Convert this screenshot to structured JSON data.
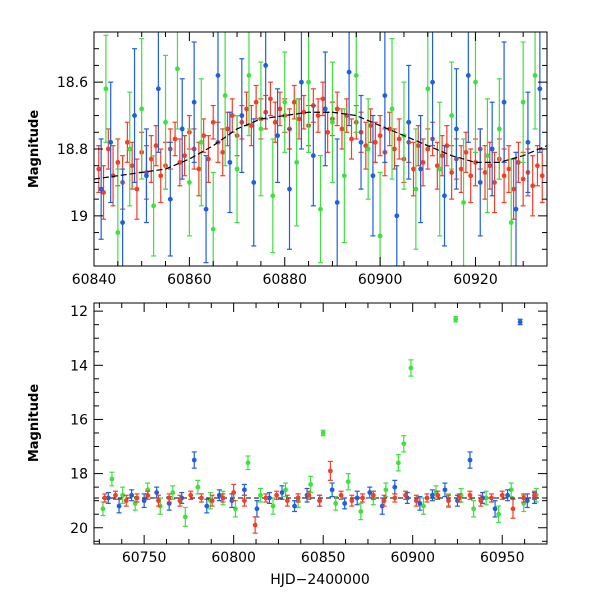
{
  "chart_data": [
    {
      "type": "scatter",
      "panel": "top",
      "ylabel": "Magnitude",
      "xlabel": "",
      "xlim": [
        60840,
        60935
      ],
      "ylim": [
        19.15,
        18.45
      ],
      "y_inverted": true,
      "x_ticks": [
        "60840",
        "60860",
        "60880",
        "60900",
        "60920"
      ],
      "x_tick_values": [
        60840,
        60860,
        60880,
        60900,
        60920
      ],
      "y_ticks": [
        "18.6",
        "18.8",
        "19"
      ],
      "y_tick_values": [
        18.6,
        18.8,
        19.0
      ],
      "colors": {
        "blue": "#1f5fe0",
        "green": "#3fe03f",
        "red": "#f0402a",
        "model": "#000000"
      },
      "model_curve": {
        "style": "dashed",
        "x": [
          60840,
          60845,
          60850,
          60855,
          60860,
          60865,
          60870,
          60875,
          60880,
          60885,
          60890,
          60895,
          60900,
          60905,
          60910,
          60915,
          60920,
          60925,
          60930,
          60935
        ],
        "y": [
          18.89,
          18.88,
          18.87,
          18.86,
          18.83,
          18.79,
          18.74,
          18.71,
          18.7,
          18.69,
          18.69,
          18.7,
          18.73,
          18.76,
          18.79,
          18.82,
          18.84,
          18.84,
          18.82,
          18.79
        ]
      },
      "series": [
        {
          "color": "red",
          "x": [
            60841,
            60842,
            60843,
            60844,
            60845,
            60846,
            60847,
            60848,
            60849,
            60850,
            60851,
            60852,
            60853,
            60854,
            60855,
            60856,
            60857,
            60858,
            60859,
            60860,
            60861,
            60862,
            60863,
            60864,
            60865,
            60866,
            60867,
            60868,
            60869,
            60870,
            60871,
            60872,
            60873,
            60874,
            60875,
            60876,
            60877,
            60878,
            60879,
            60880,
            60881,
            60882,
            60883,
            60884,
            60885,
            60886,
            60887,
            60888,
            60889,
            60890,
            60891,
            60892,
            60893,
            60894,
            60895,
            60896,
            60897,
            60898,
            60899,
            60900,
            60901,
            60902,
            60903,
            60904,
            60905,
            60906,
            60907,
            60908,
            60909,
            60910,
            60911,
            60912,
            60913,
            60914,
            60915,
            60916,
            60917,
            60918,
            60919,
            60920,
            60921,
            60922,
            60923,
            60924,
            60925,
            60926,
            60927,
            60928,
            60929,
            60930,
            60931,
            60932,
            60933,
            60934
          ],
          "y": [
            18.86,
            18.93,
            18.8,
            18.88,
            18.84,
            18.9,
            18.78,
            18.85,
            18.92,
            18.81,
            18.87,
            18.83,
            18.79,
            18.88,
            18.85,
            18.8,
            18.77,
            18.84,
            18.82,
            18.75,
            18.8,
            18.86,
            18.76,
            18.83,
            18.72,
            18.78,
            18.81,
            18.74,
            18.7,
            18.76,
            18.72,
            18.68,
            18.73,
            18.66,
            18.71,
            18.69,
            18.65,
            18.72,
            18.68,
            18.7,
            18.74,
            18.66,
            18.71,
            18.69,
            18.73,
            18.67,
            18.7,
            18.65,
            18.75,
            18.71,
            18.68,
            18.74,
            18.7,
            18.77,
            18.72,
            18.75,
            18.79,
            18.73,
            18.78,
            18.76,
            18.81,
            18.74,
            18.8,
            18.77,
            18.83,
            18.78,
            18.86,
            18.79,
            18.84,
            18.8,
            18.77,
            18.85,
            18.82,
            18.79,
            18.87,
            18.83,
            18.86,
            18.81,
            18.88,
            18.84,
            18.8,
            18.87,
            18.85,
            18.9,
            18.83,
            18.88,
            18.86,
            18.92,
            18.84,
            18.89,
            18.87,
            18.91,
            18.85,
            18.88
          ],
          "err": [
            0.07,
            0.08,
            0.06,
            0.09,
            0.07,
            0.08,
            0.06,
            0.07,
            0.09,
            0.06,
            0.08,
            0.07,
            0.06,
            0.08,
            0.07,
            0.06,
            0.05,
            0.07,
            0.06,
            0.05,
            0.06,
            0.08,
            0.05,
            0.07,
            0.05,
            0.06,
            0.07,
            0.05,
            0.05,
            0.06,
            0.05,
            0.05,
            0.06,
            0.05,
            0.06,
            0.05,
            0.05,
            0.06,
            0.05,
            0.05,
            0.06,
            0.05,
            0.06,
            0.05,
            0.06,
            0.05,
            0.05,
            0.05,
            0.06,
            0.05,
            0.05,
            0.06,
            0.05,
            0.06,
            0.05,
            0.06,
            0.07,
            0.05,
            0.06,
            0.06,
            0.07,
            0.05,
            0.06,
            0.06,
            0.07,
            0.06,
            0.08,
            0.06,
            0.07,
            0.06,
            0.05,
            0.07,
            0.06,
            0.06,
            0.08,
            0.06,
            0.07,
            0.06,
            0.08,
            0.07,
            0.06,
            0.08,
            0.07,
            0.09,
            0.06,
            0.08,
            0.07,
            0.09,
            0.06,
            0.08,
            0.07,
            0.09,
            0.06,
            0.08
          ]
        },
        {
          "color": "blue",
          "x": [
            60841.5,
            60843.5,
            60846,
            60848.5,
            60851,
            60853.5,
            60856,
            60858.5,
            60861,
            60863.5,
            60866,
            60868.5,
            60871,
            60873.5,
            60876,
            60878.5,
            60881,
            60883.5,
            60886,
            60888.5,
            60891,
            60893.5,
            60896,
            60898.5,
            60901,
            60903.5,
            60906,
            60908.5,
            60911,
            60913.5,
            60916,
            60918.5,
            60921,
            60923.5,
            60926,
            60928.5,
            60931,
            60933.5
          ],
          "y": [
            18.92,
            18.78,
            19.02,
            18.7,
            18.88,
            18.62,
            18.95,
            18.74,
            18.66,
            18.98,
            18.58,
            18.84,
            18.7,
            18.9,
            18.55,
            18.76,
            18.92,
            18.6,
            18.82,
            18.68,
            18.96,
            18.57,
            18.78,
            18.88,
            18.64,
            19.0,
            18.72,
            18.86,
            18.6,
            18.94,
            18.74,
            18.58,
            18.9,
            18.8,
            18.66,
            18.98,
            18.78,
            18.62
          ],
          "err": [
            0.15,
            0.18,
            0.16,
            0.2,
            0.14,
            0.19,
            0.17,
            0.15,
            0.18,
            0.16,
            0.2,
            0.15,
            0.17,
            0.19,
            0.16,
            0.14,
            0.18,
            0.2,
            0.15,
            0.17,
            0.19,
            0.16,
            0.14,
            0.18,
            0.2,
            0.15,
            0.17,
            0.16,
            0.19,
            0.15,
            0.18,
            0.2,
            0.16,
            0.14,
            0.18,
            0.17,
            0.15,
            0.19
          ]
        },
        {
          "color": "green",
          "x": [
            60842.5,
            60845,
            60847.5,
            60850,
            60852.5,
            60855,
            60857.5,
            60860,
            60862.5,
            60865,
            60867.5,
            60870,
            60872.5,
            60875,
            60877.5,
            60880,
            60882.5,
            60885,
            60887.5,
            60890,
            60892.5,
            60895,
            60897.5,
            60900,
            60902.5,
            60905,
            60907.5,
            60910,
            60912.5,
            60915,
            60917.5,
            60920,
            60922.5,
            60925,
            60927.5,
            60930,
            60932.5
          ],
          "y": [
            18.62,
            19.05,
            18.8,
            18.68,
            18.97,
            18.72,
            18.56,
            18.9,
            18.78,
            19.04,
            18.64,
            18.86,
            18.58,
            18.74,
            18.94,
            18.66,
            18.84,
            18.6,
            18.98,
            18.72,
            18.88,
            18.58,
            18.8,
            19.06,
            18.68,
            18.76,
            18.92,
            18.62,
            18.86,
            18.7,
            18.96,
            18.6,
            18.82,
            18.74,
            19.02,
            18.66,
            18.58
          ],
          "err": [
            0.16,
            0.19,
            0.17,
            0.21,
            0.15,
            0.2,
            0.18,
            0.16,
            0.19,
            0.17,
            0.21,
            0.16,
            0.18,
            0.2,
            0.17,
            0.15,
            0.19,
            0.21,
            0.16,
            0.18,
            0.2,
            0.17,
            0.15,
            0.19,
            0.21,
            0.16,
            0.18,
            0.17,
            0.2,
            0.16,
            0.19,
            0.21,
            0.17,
            0.15,
            0.19,
            0.18,
            0.16
          ]
        }
      ]
    },
    {
      "type": "scatter",
      "panel": "bottom",
      "ylabel": "Magnitude",
      "xlabel": "HJD−2400000",
      "xlim": [
        60722,
        60975
      ],
      "ylim": [
        20.6,
        11.7
      ],
      "y_inverted": true,
      "x_ticks": [
        "60750",
        "60800",
        "60850",
        "60900",
        "60950"
      ],
      "x_tick_values": [
        60750,
        60800,
        60850,
        60900,
        60950
      ],
      "y_ticks": [
        "12",
        "14",
        "16",
        "18",
        "20"
      ],
      "y_tick_values": [
        12,
        14,
        16,
        18,
        20
      ],
      "colors": {
        "blue": "#1f5fe0",
        "green": "#3fe03f",
        "red": "#f0402a"
      },
      "baseline": {
        "style": "dashed",
        "color": "#000000",
        "y": 18.9
      },
      "series": [
        {
          "color": "green",
          "x": [
            60727,
            60732,
            60738,
            60745,
            60752,
            60759,
            60766,
            60773,
            60780,
            60787,
            60794,
            60801,
            60808,
            60815,
            60822,
            60829,
            60836,
            60843,
            60850,
            60857,
            60864,
            60871,
            60878,
            60885,
            60892,
            60895,
            60899,
            60906,
            60913,
            60920,
            60924,
            60927,
            60934,
            60941,
            60948,
            60955,
            60962,
            60969
          ],
          "y": [
            19.3,
            18.2,
            18.8,
            19.1,
            18.6,
            19.2,
            18.7,
            19.6,
            18.5,
            19.0,
            18.9,
            19.3,
            17.6,
            18.8,
            19.2,
            18.6,
            19.0,
            18.4,
            16.5,
            19.1,
            18.3,
            19.4,
            18.9,
            18.6,
            17.6,
            16.9,
            14.1,
            19.2,
            18.7,
            19.0,
            12.3,
            18.8,
            19.3,
            18.9,
            19.5,
            18.6,
            19.1,
            18.8
          ],
          "err": [
            0.25,
            0.25,
            0.3,
            0.25,
            0.25,
            0.3,
            0.25,
            0.35,
            0.25,
            0.3,
            0.25,
            0.3,
            0.25,
            0.25,
            0.3,
            0.25,
            0.25,
            0.3,
            0.1,
            0.25,
            0.3,
            0.3,
            0.25,
            0.25,
            0.3,
            0.3,
            0.3,
            0.3,
            0.25,
            0.25,
            0.1,
            0.25,
            0.3,
            0.25,
            0.3,
            0.25,
            0.3,
            0.25
          ]
        },
        {
          "color": "blue",
          "x": [
            60730,
            60736,
            60743,
            60750,
            60757,
            60764,
            60771,
            60778,
            60785,
            60792,
            60799,
            60806,
            60813,
            60820,
            60827,
            60834,
            60841,
            60848,
            60855,
            60862,
            60869,
            60876,
            60883,
            60890,
            60897,
            60904,
            60911,
            60918,
            60925,
            60932,
            60939,
            60946,
            60953,
            60960,
            60964,
            60968
          ],
          "y": [
            18.9,
            19.2,
            18.8,
            19.0,
            18.7,
            19.1,
            18.9,
            17.5,
            19.2,
            18.8,
            19.0,
            18.6,
            19.3,
            18.9,
            18.7,
            19.2,
            18.8,
            19.0,
            18.6,
            19.1,
            18.9,
            18.7,
            19.2,
            18.5,
            18.9,
            19.1,
            18.8,
            18.6,
            19.0,
            17.5,
            18.9,
            19.3,
            18.8,
            12.4,
            19.0,
            18.9
          ],
          "err": [
            0.2,
            0.25,
            0.2,
            0.25,
            0.2,
            0.25,
            0.2,
            0.3,
            0.25,
            0.2,
            0.25,
            0.2,
            0.3,
            0.2,
            0.25,
            0.2,
            0.25,
            0.2,
            0.25,
            0.2,
            0.25,
            0.2,
            0.3,
            0.25,
            0.2,
            0.25,
            0.2,
            0.25,
            0.2,
            0.3,
            0.2,
            0.3,
            0.2,
            0.1,
            0.25,
            0.2
          ]
        },
        {
          "color": "red",
          "x": [
            60728,
            60734,
            60740,
            60746,
            60752,
            60758,
            60764,
            60770,
            60776,
            60782,
            60788,
            60794,
            60800,
            60806,
            60812,
            60818,
            60824,
            60830,
            60836,
            60842,
            60848,
            60854,
            60860,
            60866,
            60872,
            60878,
            60884,
            60890,
            60896,
            60902,
            60908,
            60914,
            60920,
            60926,
            60932,
            60938,
            60944,
            60950,
            60956,
            60962,
            60968
          ],
          "y": [
            18.9,
            18.8,
            19.0,
            18.9,
            18.8,
            19.0,
            18.9,
            19.0,
            18.8,
            18.9,
            19.0,
            18.9,
            18.7,
            19.0,
            19.9,
            18.9,
            18.8,
            19.0,
            18.9,
            18.8,
            19.0,
            17.9,
            18.8,
            19.0,
            18.9,
            18.8,
            19.0,
            18.9,
            18.8,
            19.0,
            18.9,
            18.8,
            19.0,
            18.9,
            18.8,
            19.0,
            18.9,
            18.8,
            19.3,
            18.9,
            18.8
          ],
          "err": [
            0.15,
            0.15,
            0.2,
            0.15,
            0.15,
            0.2,
            0.15,
            0.2,
            0.15,
            0.15,
            0.2,
            0.15,
            0.3,
            0.2,
            0.3,
            0.15,
            0.15,
            0.2,
            0.15,
            0.15,
            0.2,
            0.35,
            0.15,
            0.2,
            0.15,
            0.15,
            0.2,
            0.15,
            0.15,
            0.2,
            0.15,
            0.15,
            0.2,
            0.15,
            0.15,
            0.2,
            0.15,
            0.15,
            0.35,
            0.15,
            0.15
          ]
        }
      ]
    }
  ]
}
